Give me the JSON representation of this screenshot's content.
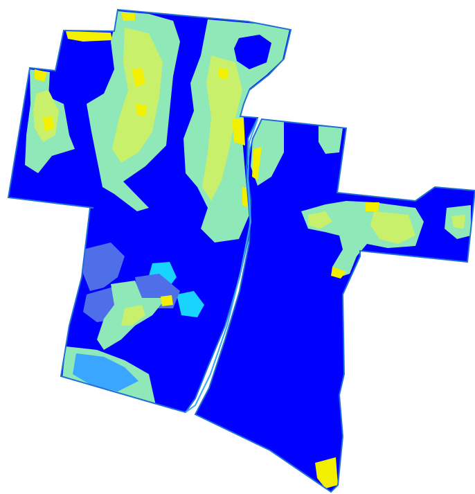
{
  "map": {
    "colors": {
      "background": "#ffffff",
      "base": "#0000ff",
      "outline": "#1f6fd6",
      "mint": "#8ee8b8",
      "teal": "#7ddbc8",
      "lime": "#c9f06a",
      "yellow": "#f2f000",
      "cyan": "#19d4ff",
      "sky": "#3aa6ff",
      "slate": "#4f6fe8"
    },
    "fields": [
      "west-field",
      "east-field"
    ],
    "zones": [
      "yield-zone-low",
      "yield-zone-medium",
      "yield-zone-high",
      "yield-zone-very-high"
    ]
  }
}
